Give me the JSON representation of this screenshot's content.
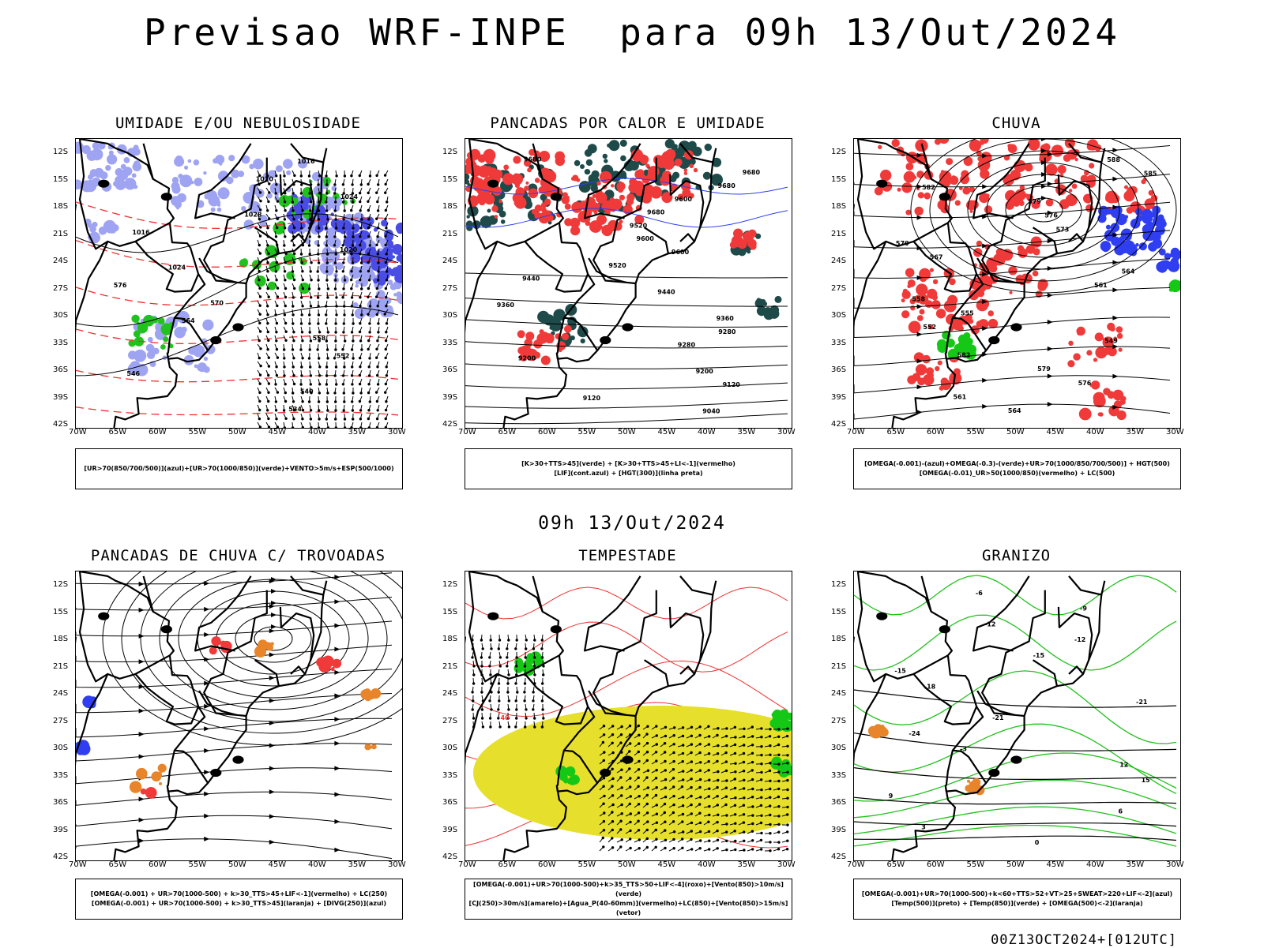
{
  "page": {
    "title": "Previsao WRF-INPE  para 09h 13/Out/2024",
    "subtitle": "09h 13/Out/2024",
    "footer": "00Z13OCT2024+[012UTC]"
  },
  "axes": {
    "lat_labels": [
      "12S",
      "15S",
      "18S",
      "21S",
      "24S",
      "27S",
      "30S",
      "33S",
      "36S",
      "39S",
      "42S"
    ],
    "lon_labels": [
      "70W",
      "65W",
      "60W",
      "55W",
      "50W",
      "45W",
      "40W",
      "35W",
      "30W"
    ]
  },
  "colors": {
    "rh_upper_blue": "#9fa4f2",
    "rh_dark_blue": "#4a4ce6",
    "green_contour": "#22c21e",
    "red_contour": "#f03030",
    "dark_teal": "#1f4a4a",
    "red_fill": "#f03a3a",
    "yellow_fill": "#e6df2c",
    "orange_fill": "#e8852a",
    "blue": "#2f3ef0",
    "green_fill": "#16c816"
  },
  "panels": [
    {
      "title": "UMIDADE E/OU NEBULOSIDADE",
      "legend": [
        "[UR>70(850/700/500)](azul)+[UR>70(1000/850)](verde)+VENTO>5m/s+ESP(500/1000)"
      ],
      "labels": [
        "1016",
        "1020",
        "1024",
        "1028",
        "1016",
        "1020",
        "1024",
        "576",
        "570",
        "564",
        "558",
        "552",
        "546",
        "540",
        "534"
      ]
    },
    {
      "title": "PANCADAS POR CALOR E UMIDADE",
      "legend": [
        "[K>30+TTS>45](verde) + [K>30+TTS>45+LI<-1](vermelho)",
        "[LIF](cont.azul) + [HGT(300)](linha preta)"
      ],
      "labels": [
        "9680",
        "9680",
        "9680",
        "9600",
        "9680",
        "9520",
        "9600",
        "9600",
        "9520",
        "9440",
        "9440",
        "9360",
        "9360",
        "9280",
        "9280",
        "9200",
        "9200",
        "9120",
        "9120",
        "9040"
      ]
    },
    {
      "title": "CHUVA",
      "legend": [
        "[OMEGA(-0.001)-(azul)+OMEGA(-0.3)-(verde)+UR>70(1000/850/700/500)] + HGT(500)",
        "[OMEGA(-0.01)_UR>50(1000/850)(vermelho) + LC(500)"
      ],
      "labels": [
        "588",
        "585",
        "582",
        "579",
        "576",
        "573",
        "570",
        "567",
        "564",
        "561",
        "558",
        "555",
        "552",
        "549",
        "582",
        "579",
        "576",
        "561",
        "564"
      ]
    },
    {
      "title": "PANCADAS DE CHUVA C/ TROVOADAS",
      "legend": [
        "[OMEGA(-0.001) + UR>70(1000-500) + k>30_TTS>45+LIF<-1](vermelho) + LC(250)",
        "[OMEGA(-0.001) + UR>70(1000-500) + k>30_TTS>45](laranja) + [DIVG(250)](azul)"
      ],
      "labels": []
    },
    {
      "title": "TEMPESTADE",
      "legend": [
        "[OMEGA(-0.001)+UR>70(1000-500)+k>35_TTS>50+LIF<-4](roxo)+[Vento(850)>10m/s](verde)",
        "[CJ(250)>30m/s](amarelo)+[Agua_P(40-60mm)](vermelho)+LC(850)+[Vento(850)>15m/s](vetor)"
      ],
      "labels": [
        "40"
      ]
    },
    {
      "title": "GRANIZO",
      "legend": [
        "[OMEGA(-0.001)+UR>70(1000-500)+k<60+TTS>52+VT>25+SWEAT>220+LIF<-2](azul)",
        "[Temp(500)](preto) + [Temp(850)](verde) + [OMEGA(500)<-2](laranja)"
      ],
      "labels": [
        "-6",
        "-9",
        "-12",
        "-12",
        "-15",
        "-15",
        "-18",
        "-21",
        "-21",
        "-24",
        "-3",
        "12",
        "15",
        "9",
        "6",
        "3",
        "0"
      ]
    }
  ]
}
